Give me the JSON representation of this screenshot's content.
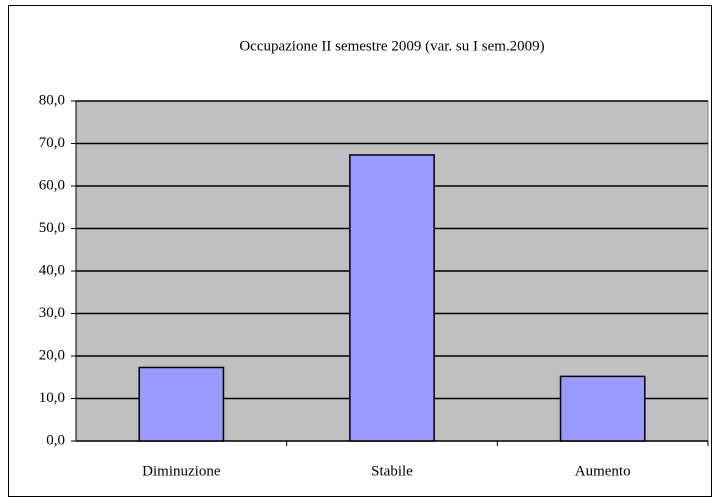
{
  "chart_data": {
    "type": "bar",
    "title": "Occupazione II semestre 2009 (var. su I sem.2009)",
    "categories": [
      "Diminuzione",
      "Stabile",
      "Aumento"
    ],
    "values": [
      17.3,
      67.3,
      15.2
    ],
    "color": "#9999ff",
    "ylim": [
      0,
      80
    ],
    "yticks": [
      {
        "value": 0,
        "label": "0,0"
      },
      {
        "value": 10,
        "label": "10,0"
      },
      {
        "value": 20,
        "label": "20,0"
      },
      {
        "value": 30,
        "label": "30,0"
      },
      {
        "value": 40,
        "label": "40,0"
      },
      {
        "value": 50,
        "label": "50,0"
      },
      {
        "value": 60,
        "label": "60,0"
      },
      {
        "value": 70,
        "label": "70,0"
      },
      {
        "value": 80,
        "label": "80,0"
      }
    ],
    "grid": true
  }
}
